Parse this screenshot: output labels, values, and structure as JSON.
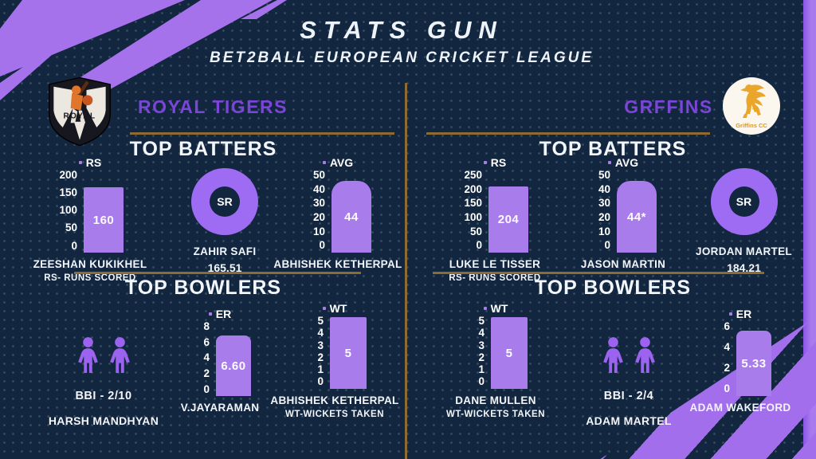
{
  "header": {
    "title": "STATS GUN",
    "subtitle": "BET2BALL EUROPEAN CRICKET LEAGUE"
  },
  "left": {
    "team": "ROYAL TIGERS",
    "logo_text": "ROYAL",
    "batters_title": "TOP BATTERS",
    "bowlers_title": "TOP BOWLERS",
    "rs": {
      "legend": "RS",
      "ticks": [
        200,
        150,
        100,
        50,
        0
      ],
      "value": 160,
      "max": 200,
      "display": "160",
      "player": "ZEESHAN KUKIKHEL",
      "note": "RS- RUNS SCORED"
    },
    "sr": {
      "label": "SR",
      "player": "ZAHIR SAFI",
      "value": "165.51"
    },
    "avg": {
      "legend": "AVG",
      "ticks": [
        50,
        40,
        30,
        20,
        10,
        0
      ],
      "value": 44,
      "max": 50,
      "display": "44",
      "player": "ABHISHEK KETHERPAL"
    },
    "bbi": {
      "label": "BBI - 2/10",
      "player": "HARSH MANDHYAN"
    },
    "er": {
      "legend": "ER",
      "ticks": [
        8,
        6,
        4,
        2,
        0
      ],
      "value": 6.6,
      "max": 8,
      "display": "6.60",
      "player": "V.JAYARAMAN"
    },
    "wt": {
      "legend": "WT",
      "ticks": [
        5,
        4,
        3,
        2,
        1,
        0
      ],
      "value": 5,
      "max": 5,
      "display": "5",
      "player": "ABHISHEK KETHERPAL",
      "note": "WT-WICKETS TAKEN"
    }
  },
  "right": {
    "team": "GRFFINS",
    "logo_text": "Griffins CC",
    "batters_title": "TOP BATTERS",
    "bowlers_title": "TOP BOWLERS",
    "rs": {
      "legend": "RS",
      "ticks": [
        250,
        200,
        150,
        100,
        50,
        0
      ],
      "value": 204,
      "max": 250,
      "display": "204",
      "player": "LUKE LE TISSER",
      "note": "RS- RUNS SCORED"
    },
    "avg": {
      "legend": "AVG",
      "ticks": [
        50,
        40,
        30,
        20,
        10,
        0
      ],
      "value": 44,
      "max": 50,
      "display": "44*",
      "player": "JASON MARTIN"
    },
    "sr": {
      "label": "SR",
      "player": "JORDAN MARTEL",
      "value": "184.21"
    },
    "wt": {
      "legend": "WT",
      "ticks": [
        5,
        4,
        3,
        2,
        1,
        0
      ],
      "value": 5,
      "max": 5,
      "display": "5",
      "player": "DANE MULLEN",
      "note": "WT-WICKETS TAKEN"
    },
    "bbi": {
      "label": "BBI - 2/4",
      "player": "ADAM MARTEL"
    },
    "er": {
      "legend": "ER",
      "ticks": [
        6,
        4,
        2,
        0
      ],
      "value": 5.33,
      "max": 6,
      "display": "5.33",
      "player": "ADAM WAKEFORD"
    }
  },
  "colors": {
    "background": "#132640",
    "accent_purple": "#a97cec",
    "team_purple": "#7a45d8",
    "gold": "#8d6b33",
    "text": "#f2f6fb"
  },
  "chart_data": [
    {
      "type": "bar",
      "panel": "ROYAL TIGERS",
      "legend": "RS",
      "player": "ZEESHAN KUKIKHEL",
      "value": 160,
      "ylim": [
        0,
        200
      ],
      "yticks": [
        200,
        150,
        100,
        50,
        0
      ],
      "note": "RS- RUNS SCORED"
    },
    {
      "type": "donut",
      "panel": "ROYAL TIGERS",
      "legend": "SR",
      "player": "ZAHIR SAFI",
      "value": 165.51
    },
    {
      "type": "bar",
      "panel": "ROYAL TIGERS",
      "legend": "AVG",
      "player": "ABHISHEK KETHERPAL",
      "value": 44,
      "ylim": [
        0,
        50
      ],
      "yticks": [
        50,
        40,
        30,
        20,
        10,
        0
      ]
    },
    {
      "type": "icon-stat",
      "panel": "ROYAL TIGERS",
      "legend": "BBI",
      "player": "HARSH MANDHYAN",
      "value": "2/10"
    },
    {
      "type": "bar",
      "panel": "ROYAL TIGERS",
      "legend": "ER",
      "player": "V.JAYARAMAN",
      "value": 6.6,
      "ylim": [
        0,
        8
      ],
      "yticks": [
        8,
        6,
        4,
        2,
        0
      ]
    },
    {
      "type": "bar",
      "panel": "ROYAL TIGERS",
      "legend": "WT",
      "player": "ABHISHEK KETHERPAL",
      "value": 5,
      "ylim": [
        0,
        5
      ],
      "yticks": [
        5,
        4,
        3,
        2,
        1,
        0
      ],
      "note": "WT-WICKETS TAKEN"
    },
    {
      "type": "bar",
      "panel": "GRFFINS",
      "legend": "RS",
      "player": "LUKE LE TISSER",
      "value": 204,
      "ylim": [
        0,
        250
      ],
      "yticks": [
        250,
        200,
        150,
        100,
        50,
        0
      ],
      "note": "RS- RUNS SCORED"
    },
    {
      "type": "bar",
      "panel": "GRFFINS",
      "legend": "AVG",
      "player": "JASON MARTIN",
      "value": "44*",
      "ylim": [
        0,
        50
      ],
      "yticks": [
        50,
        40,
        30,
        20,
        10,
        0
      ]
    },
    {
      "type": "donut",
      "panel": "GRFFINS",
      "legend": "SR",
      "player": "JORDAN MARTEL",
      "value": 184.21
    },
    {
      "type": "bar",
      "panel": "GRFFINS",
      "legend": "WT",
      "player": "DANE MULLEN",
      "value": 5,
      "ylim": [
        0,
        5
      ],
      "yticks": [
        5,
        4,
        3,
        2,
        1,
        0
      ],
      "note": "WT-WICKETS TAKEN"
    },
    {
      "type": "icon-stat",
      "panel": "GRFFINS",
      "legend": "BBI",
      "player": "ADAM MARTEL",
      "value": "2/4"
    },
    {
      "type": "bar",
      "panel": "GRFFINS",
      "legend": "ER",
      "player": "ADAM WAKEFORD",
      "value": 5.33,
      "ylim": [
        0,
        6
      ],
      "yticks": [
        6,
        4,
        2,
        0
      ]
    }
  ]
}
